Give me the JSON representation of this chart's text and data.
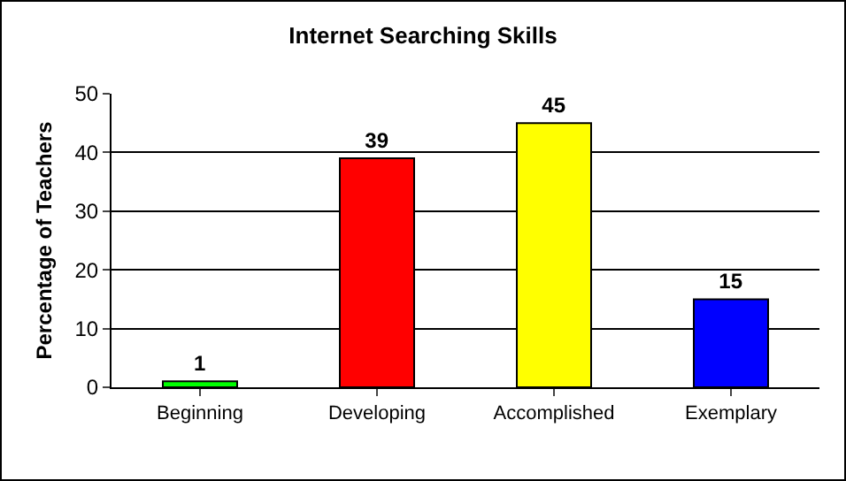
{
  "chart_data": {
    "type": "bar",
    "title": "Internet Searching Skills",
    "ylabel": "Percentage of Teachers",
    "categories": [
      "Beginning",
      "Developing",
      "Accomplished",
      "Exemplary"
    ],
    "values": [
      1,
      39,
      45,
      15
    ],
    "colors": [
      "#00ff00",
      "#ff0000",
      "#ffff00",
      "#0000ff"
    ],
    "ylim": [
      0,
      50
    ],
    "yticks": [
      0,
      10,
      20,
      30,
      40,
      50
    ],
    "grid": "y",
    "data_labels": true
  }
}
